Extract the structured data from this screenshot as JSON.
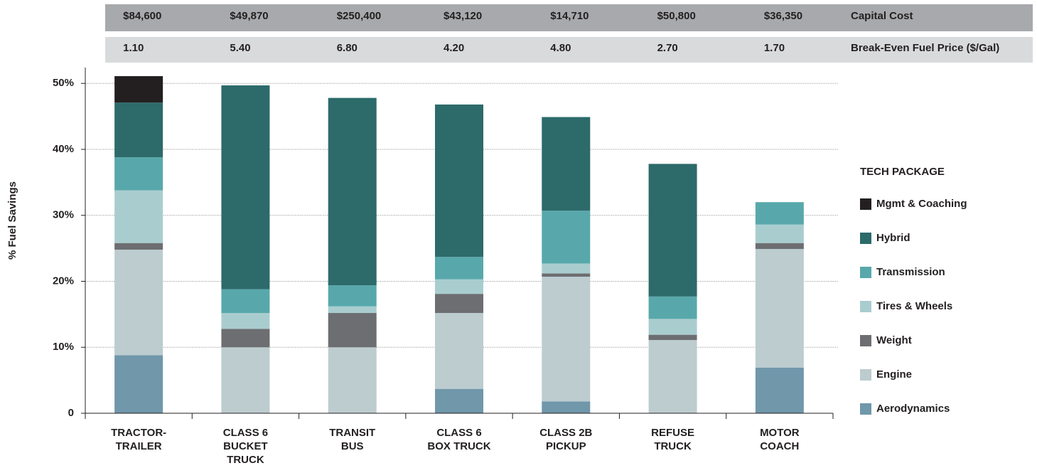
{
  "chart_data": {
    "type": "stacked_bar",
    "y_label": "% Fuel Savings",
    "categories": [
      "TRACTOR-\nTRAILER",
      "CLASS 6\nBUCKET\nTRUCK",
      "TRANSIT\nBUS",
      "CLASS 6\nBOX TRUCK",
      "CLASS 2B\nPICKUP",
      "REFUSE\nTRUCK",
      "MOTOR\nCOACH"
    ],
    "series": [
      {
        "name": "Aerodynamics",
        "color": "#7097aa",
        "values": [
          8.8,
          0,
          0,
          3.7,
          1.8,
          0,
          6.9
        ]
      },
      {
        "name": "Engine",
        "color": "#bccccf",
        "values": [
          16,
          10,
          10,
          11.5,
          18.9,
          11.1,
          18
        ]
      },
      {
        "name": "Weight",
        "color": "#6d6e71",
        "values": [
          1,
          2.8,
          5.2,
          2.9,
          0.5,
          0.8,
          0.9
        ]
      },
      {
        "name": "Tires & Wheels",
        "color": "#a9cdcf",
        "values": [
          8,
          2.4,
          1,
          2.2,
          1.5,
          2.4,
          2.8
        ]
      },
      {
        "name": "Transmission",
        "color": "#58a8ab",
        "values": [
          5,
          3.6,
          3.2,
          3.4,
          8,
          3.4,
          3.4
        ]
      },
      {
        "name": "Hybrid",
        "color": "#2d6a6a",
        "values": [
          8.3,
          30.9,
          28.4,
          23.1,
          14.2,
          20.1,
          0
        ]
      },
      {
        "name": "Mgmt & Coaching",
        "color": "#231f20",
        "values": [
          4,
          0,
          0,
          0,
          0,
          0,
          0
        ]
      }
    ],
    "ylim": [
      0,
      52.4
    ],
    "yticks": [
      0,
      {
        "value": 10,
        "label": "10%"
      },
      {
        "value": 20,
        "label": "20%"
      },
      {
        "value": 30,
        "label": "30%"
      },
      {
        "value": 40,
        "label": "40%"
      },
      {
        "value": 50,
        "label": "50%"
      }
    ],
    "grid": true,
    "legend_title": "TECH PACKAGE",
    "legend_position": "right",
    "table_rows": [
      {
        "label": "Capital Cost",
        "color": "#a7a9ac",
        "values": [
          "$84,600",
          "$49,870",
          "$250,400",
          "$43,120",
          "$14,710",
          "$50,800",
          "$36,350"
        ]
      },
      {
        "label": "Break-Even Fuel Price ($/Gal)",
        "color": "#d9dadb",
        "values": [
          "1.10",
          "5.40",
          "6.80",
          "4.20",
          "4.80",
          "2.70",
          "1.70"
        ]
      }
    ]
  }
}
